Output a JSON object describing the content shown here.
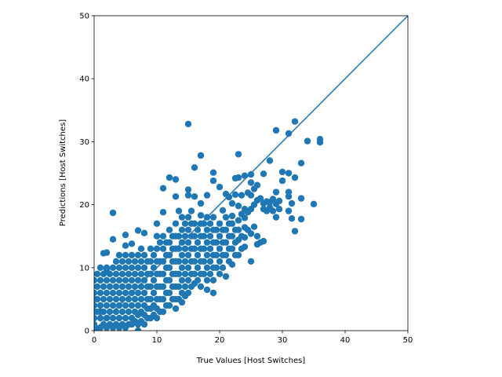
{
  "chart_data": {
    "type": "scatter",
    "xlabel": "True Values [Host Switches]",
    "ylabel": "Predictions [Host Switches]",
    "xlim": [
      0,
      50
    ],
    "ylim": [
      0,
      50
    ],
    "xticks": [
      "0",
      "10",
      "20",
      "30",
      "40",
      "50"
    ],
    "yticks": [
      "0",
      "10",
      "20",
      "30",
      "40",
      "50"
    ],
    "grid": false,
    "legend": "none",
    "color": "#1f77b4",
    "reference_line": {
      "x": [
        0,
        50
      ],
      "y": [
        0,
        50
      ]
    },
    "points": [
      [
        0,
        0.5
      ],
      [
        0,
        2
      ],
      [
        0,
        4
      ],
      [
        0,
        6
      ],
      [
        0,
        8
      ],
      [
        0,
        3
      ],
      [
        0,
        1
      ],
      [
        0,
        5
      ],
      [
        0.5,
        0.3
      ],
      [
        0.5,
        3
      ],
      [
        0.5,
        5
      ],
      [
        0.5,
        7
      ],
      [
        0.5,
        9
      ],
      [
        1,
        0.5
      ],
      [
        1,
        2
      ],
      [
        1,
        4
      ],
      [
        1,
        6
      ],
      [
        1,
        8
      ],
      [
        1,
        3
      ],
      [
        1,
        10
      ],
      [
        1.5,
        1
      ],
      [
        1.5,
        3
      ],
      [
        1.5,
        5
      ],
      [
        1.5,
        7
      ],
      [
        1.5,
        9
      ],
      [
        1.5,
        12.3
      ],
      [
        2,
        0.5
      ],
      [
        2,
        2
      ],
      [
        2,
        4
      ],
      [
        2,
        6
      ],
      [
        2,
        8
      ],
      [
        2,
        10
      ],
      [
        2,
        9.6
      ],
      [
        2,
        12.4
      ],
      [
        2.5,
        1
      ],
      [
        2.5,
        3
      ],
      [
        2.5,
        5
      ],
      [
        2.5,
        7
      ],
      [
        2.5,
        9
      ],
      [
        3,
        0.5
      ],
      [
        3,
        2
      ],
      [
        3,
        4
      ],
      [
        3,
        6
      ],
      [
        3,
        8
      ],
      [
        3,
        10
      ],
      [
        3,
        14.5
      ],
      [
        3,
        18.7
      ],
      [
        3.5,
        1
      ],
      [
        3.5,
        3
      ],
      [
        3.5,
        5
      ],
      [
        3.5,
        7
      ],
      [
        3.5,
        9
      ],
      [
        3.5,
        11
      ],
      [
        4,
        0.5
      ],
      [
        4,
        2
      ],
      [
        4,
        4
      ],
      [
        4,
        6
      ],
      [
        4,
        8
      ],
      [
        4,
        10
      ],
      [
        4,
        12
      ],
      [
        4.5,
        1
      ],
      [
        4.5,
        3
      ],
      [
        4.5,
        5
      ],
      [
        4.5,
        7
      ],
      [
        4.5,
        9
      ],
      [
        4.5,
        11
      ],
      [
        5,
        0.5
      ],
      [
        5,
        2
      ],
      [
        5,
        4
      ],
      [
        5,
        6
      ],
      [
        5,
        8
      ],
      [
        5,
        10
      ],
      [
        5,
        12
      ],
      [
        5,
        13.5
      ],
      [
        5,
        15.2
      ],
      [
        5.5,
        1
      ],
      [
        5.5,
        3
      ],
      [
        5.5,
        5
      ],
      [
        5.5,
        7
      ],
      [
        5.5,
        9
      ],
      [
        5.5,
        11
      ],
      [
        6,
        1
      ],
      [
        6,
        2
      ],
      [
        6,
        4
      ],
      [
        6,
        6
      ],
      [
        6,
        8
      ],
      [
        6,
        10
      ],
      [
        6,
        12
      ],
      [
        6,
        13.8
      ],
      [
        6.5,
        1.5
      ],
      [
        6.5,
        3
      ],
      [
        6.5,
        5
      ],
      [
        6.5,
        7
      ],
      [
        6.5,
        9
      ],
      [
        6.5,
        11
      ],
      [
        7,
        1
      ],
      [
        7,
        2.5
      ],
      [
        7,
        4
      ],
      [
        7,
        6
      ],
      [
        7,
        8
      ],
      [
        7,
        10
      ],
      [
        7,
        12
      ],
      [
        7,
        15.9
      ],
      [
        7,
        0
      ],
      [
        7.5,
        1.5
      ],
      [
        7.5,
        3
      ],
      [
        7.5,
        5
      ],
      [
        7.5,
        7
      ],
      [
        7.5,
        9
      ],
      [
        7.5,
        11
      ],
      [
        7.5,
        13
      ],
      [
        8,
        1
      ],
      [
        8,
        2.5
      ],
      [
        8,
        4
      ],
      [
        8,
        6
      ],
      [
        8,
        8
      ],
      [
        8,
        10
      ],
      [
        8,
        12
      ],
      [
        8,
        15.5
      ],
      [
        8.5,
        2
      ],
      [
        8.5,
        3.5
      ],
      [
        8.5,
        5
      ],
      [
        8.5,
        7
      ],
      [
        8.5,
        9
      ],
      [
        8.5,
        11
      ],
      [
        9,
        2
      ],
      [
        9,
        3.5
      ],
      [
        9,
        5
      ],
      [
        9,
        7
      ],
      [
        9,
        9
      ],
      [
        9,
        11
      ],
      [
        9,
        13
      ],
      [
        9.5,
        2.5
      ],
      [
        9.5,
        4
      ],
      [
        9.5,
        6
      ],
      [
        9.5,
        8
      ],
      [
        9.5,
        10
      ],
      [
        9.5,
        12
      ],
      [
        10,
        2
      ],
      [
        10,
        3.5
      ],
      [
        10,
        5
      ],
      [
        10,
        7
      ],
      [
        10,
        9
      ],
      [
        10,
        11
      ],
      [
        10,
        13
      ],
      [
        10,
        15
      ],
      [
        10,
        17
      ],
      [
        10.5,
        3
      ],
      [
        10.5,
        5
      ],
      [
        10.5,
        7
      ],
      [
        10.5,
        9
      ],
      [
        10.5,
        11
      ],
      [
        10.5,
        14
      ],
      [
        11,
        3
      ],
      [
        11,
        5
      ],
      [
        11,
        7
      ],
      [
        11,
        9
      ],
      [
        11,
        11
      ],
      [
        11,
        13
      ],
      [
        11,
        15
      ],
      [
        11,
        18.8
      ],
      [
        11,
        22.6
      ],
      [
        11.5,
        4
      ],
      [
        11.5,
        6
      ],
      [
        11.5,
        8
      ],
      [
        11.5,
        10
      ],
      [
        11.5,
        12
      ],
      [
        11.5,
        14
      ],
      [
        12,
        4
      ],
      [
        12,
        6
      ],
      [
        12,
        8
      ],
      [
        12,
        10
      ],
      [
        12,
        12
      ],
      [
        12,
        14
      ],
      [
        12,
        16
      ],
      [
        12,
        24.3
      ],
      [
        12.5,
        5
      ],
      [
        12.5,
        7
      ],
      [
        12.5,
        9
      ],
      [
        12.5,
        11
      ],
      [
        12.5,
        13
      ],
      [
        12.5,
        15
      ],
      [
        13,
        3.5
      ],
      [
        13,
        5
      ],
      [
        13,
        7
      ],
      [
        13,
        9
      ],
      [
        13,
        11
      ],
      [
        13,
        13
      ],
      [
        13,
        15
      ],
      [
        13,
        17
      ],
      [
        13,
        21.3
      ],
      [
        13,
        24
      ],
      [
        13.5,
        5
      ],
      [
        13.5,
        7
      ],
      [
        13.5,
        9
      ],
      [
        13.5,
        11
      ],
      [
        13.5,
        13
      ],
      [
        13.5,
        15
      ],
      [
        13.5,
        19
      ],
      [
        14,
        4.5
      ],
      [
        14,
        6
      ],
      [
        14,
        8
      ],
      [
        14,
        10
      ],
      [
        14,
        12
      ],
      [
        14,
        14
      ],
      [
        14,
        16
      ],
      [
        14,
        18
      ],
      [
        14.5,
        5.5
      ],
      [
        14.5,
        7
      ],
      [
        14.5,
        9
      ],
      [
        14.5,
        11
      ],
      [
        14.5,
        13
      ],
      [
        14.5,
        15
      ],
      [
        14.5,
        17
      ],
      [
        15,
        6
      ],
      [
        15,
        8
      ],
      [
        15,
        10
      ],
      [
        15,
        12
      ],
      [
        15,
        14
      ],
      [
        15,
        16
      ],
      [
        15,
        18
      ],
      [
        15,
        21.5
      ],
      [
        15,
        22.4
      ],
      [
        15,
        32.8
      ],
      [
        15.5,
        7
      ],
      [
        15.5,
        9
      ],
      [
        15.5,
        11
      ],
      [
        15.5,
        13
      ],
      [
        15.5,
        15
      ],
      [
        15.5,
        17
      ],
      [
        15.5,
        19
      ],
      [
        16,
        7.5
      ],
      [
        16,
        9
      ],
      [
        16,
        11
      ],
      [
        16,
        13
      ],
      [
        16,
        15
      ],
      [
        16,
        17
      ],
      [
        16,
        25.9
      ],
      [
        16,
        21.3
      ],
      [
        16.5,
        8
      ],
      [
        16.5,
        10
      ],
      [
        16.5,
        12
      ],
      [
        16.5,
        14
      ],
      [
        16.5,
        16
      ],
      [
        17,
        7
      ],
      [
        17,
        9
      ],
      [
        17,
        11
      ],
      [
        17,
        13
      ],
      [
        17,
        15
      ],
      [
        17,
        17
      ],
      [
        17,
        18.3
      ],
      [
        17,
        20.2
      ],
      [
        17,
        27.8
      ],
      [
        17.5,
        9
      ],
      [
        17.5,
        11
      ],
      [
        17.5,
        13
      ],
      [
        17.5,
        15
      ],
      [
        17.5,
        17
      ],
      [
        18,
        6.5
      ],
      [
        18,
        8
      ],
      [
        18,
        10
      ],
      [
        18,
        12
      ],
      [
        18,
        14
      ],
      [
        18,
        16
      ],
      [
        18,
        18
      ],
      [
        18,
        21.5
      ],
      [
        18.5,
        9
      ],
      [
        18.5,
        11
      ],
      [
        18.5,
        13
      ],
      [
        18.5,
        15
      ],
      [
        18.5,
        17
      ],
      [
        19,
        6
      ],
      [
        19,
        8
      ],
      [
        19,
        10
      ],
      [
        19,
        12
      ],
      [
        19,
        14
      ],
      [
        19,
        16
      ],
      [
        19,
        18
      ],
      [
        19,
        23.8
      ],
      [
        19,
        25.1
      ],
      [
        19.5,
        10
      ],
      [
        19.5,
        12
      ],
      [
        19.5,
        14
      ],
      [
        19.5,
        16
      ],
      [
        20,
        9
      ],
      [
        20,
        11
      ],
      [
        20,
        13
      ],
      [
        20,
        15
      ],
      [
        20,
        17
      ],
      [
        20,
        22.8
      ],
      [
        20.5,
        10
      ],
      [
        20.5,
        12
      ],
      [
        20.5,
        14
      ],
      [
        20.5,
        16
      ],
      [
        20.5,
        19.1
      ],
      [
        21,
        8.6
      ],
      [
        21,
        12
      ],
      [
        21,
        14
      ],
      [
        21,
        16
      ],
      [
        21,
        18
      ],
      [
        21,
        21.7
      ],
      [
        21.5,
        11
      ],
      [
        21.5,
        13
      ],
      [
        21.5,
        15
      ],
      [
        21.5,
        17
      ],
      [
        21.5,
        21.2
      ],
      [
        22,
        10.5
      ],
      [
        22,
        13
      ],
      [
        22,
        15
      ],
      [
        22,
        17
      ],
      [
        22,
        18.2
      ],
      [
        22,
        20.2
      ],
      [
        22.5,
        12
      ],
      [
        22.5,
        14
      ],
      [
        22.5,
        16
      ],
      [
        22.5,
        21.6
      ],
      [
        22.5,
        24.2
      ],
      [
        23,
        12
      ],
      [
        23,
        14.4
      ],
      [
        23,
        16
      ],
      [
        23,
        17.5
      ],
      [
        23,
        19.8
      ],
      [
        23,
        28
      ],
      [
        23,
        24.3
      ],
      [
        23.5,
        13
      ],
      [
        23.5,
        15
      ],
      [
        23.5,
        18.5
      ],
      [
        23.5,
        21.5
      ],
      [
        24,
        13.3
      ],
      [
        24,
        14.8
      ],
      [
        24,
        16.4
      ],
      [
        24,
        17.9
      ],
      [
        24,
        19.3
      ],
      [
        24,
        24.6
      ],
      [
        24.5,
        16
      ],
      [
        24.5,
        18.8
      ],
      [
        24.5,
        21.9
      ],
      [
        25,
        11
      ],
      [
        25,
        15.4
      ],
      [
        25,
        19.3
      ],
      [
        25,
        21.5
      ],
      [
        25,
        23.5
      ],
      [
        25,
        24.8
      ],
      [
        25.5,
        16.5
      ],
      [
        25.5,
        20
      ],
      [
        25.5,
        22.5
      ],
      [
        26,
        13.7
      ],
      [
        26,
        15
      ],
      [
        26,
        20.7
      ],
      [
        26,
        23.1
      ],
      [
        26.5,
        14
      ],
      [
        26.5,
        21
      ],
      [
        27,
        14.2
      ],
      [
        27,
        19.3
      ],
      [
        27,
        20.2
      ],
      [
        27,
        24.9
      ],
      [
        27.5,
        19
      ],
      [
        27.5,
        20.5
      ],
      [
        28,
        19.6
      ],
      [
        28,
        20.4
      ],
      [
        28,
        27
      ],
      [
        28.5,
        19
      ],
      [
        28.5,
        20.9
      ],
      [
        29,
        18
      ],
      [
        29,
        20.1
      ],
      [
        29,
        22
      ],
      [
        29,
        31.8
      ],
      [
        29.5,
        19.3
      ],
      [
        29.5,
        20.6
      ],
      [
        30,
        23.8
      ],
      [
        30,
        25.2
      ],
      [
        31,
        19
      ],
      [
        31,
        21.3
      ],
      [
        31,
        22
      ],
      [
        31,
        25
      ],
      [
        31,
        31.3
      ],
      [
        31.5,
        17.8
      ],
      [
        31.5,
        20.2
      ],
      [
        32,
        15.8
      ],
      [
        32,
        24.3
      ],
      [
        32,
        33.2
      ],
      [
        33,
        17.7
      ],
      [
        33,
        21
      ],
      [
        33,
        26.6
      ],
      [
        34,
        30.1
      ],
      [
        35,
        20.1
      ],
      [
        36,
        29.9
      ],
      [
        36,
        30.4
      ]
    ]
  }
}
